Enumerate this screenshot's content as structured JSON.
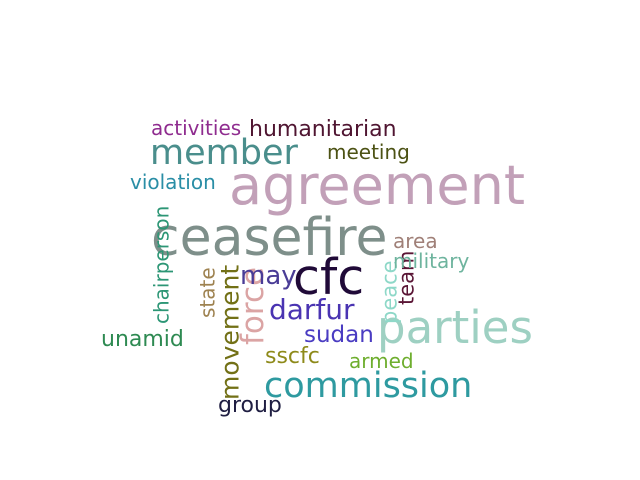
{
  "words": [
    {
      "id": "ceasefire",
      "text": "ceasefire",
      "color": "#7E8F8A"
    },
    {
      "id": "agreement",
      "text": "agreement",
      "color": "#C2A0B8"
    },
    {
      "id": "cfc",
      "text": "cfc",
      "color": "#200A38"
    },
    {
      "id": "parties",
      "text": "parties",
      "color": "#9ED0C2"
    },
    {
      "id": "commission",
      "text": "commission",
      "color": "#2E9AA0"
    },
    {
      "id": "member",
      "text": "member",
      "color": "#4A8E8C"
    },
    {
      "id": "humanitarian",
      "text": "humanitarian",
      "color": "#4F1531"
    },
    {
      "id": "activities",
      "text": "activities",
      "color": "#8F2C8F"
    },
    {
      "id": "meeting",
      "text": "meeting",
      "color": "#4C5214"
    },
    {
      "id": "violation",
      "text": "violation",
      "color": "#2A8EA6"
    },
    {
      "id": "chairperson",
      "text": "chairperson",
      "color": "#2C9675"
    },
    {
      "id": "force",
      "text": "force",
      "color": "#DBA4A4"
    },
    {
      "id": "movement",
      "text": "movement",
      "color": "#727016"
    },
    {
      "id": "state",
      "text": "state",
      "color": "#9E8250"
    },
    {
      "id": "may",
      "text": "may",
      "color": "#4A3C96"
    },
    {
      "id": "darfur",
      "text": "darfur",
      "color": "#4A34B2"
    },
    {
      "id": "sudan",
      "text": "sudan",
      "color": "#4A3CC2"
    },
    {
      "id": "peace",
      "text": "peace",
      "color": "#8ED8C8"
    },
    {
      "id": "team",
      "text": "team",
      "color": "#5A1535"
    },
    {
      "id": "area",
      "text": "area",
      "color": "#A08078"
    },
    {
      "id": "military",
      "text": "military",
      "color": "#6EB49E"
    },
    {
      "id": "unamid",
      "text": "unamid",
      "color": "#2E8A52"
    },
    {
      "id": "sscfc",
      "text": "sscfc",
      "color": "#8E8A1A"
    },
    {
      "id": "armed",
      "text": "armed",
      "color": "#6EAE2E"
    },
    {
      "id": "group",
      "text": "group",
      "color": "#1F1E42"
    }
  ]
}
